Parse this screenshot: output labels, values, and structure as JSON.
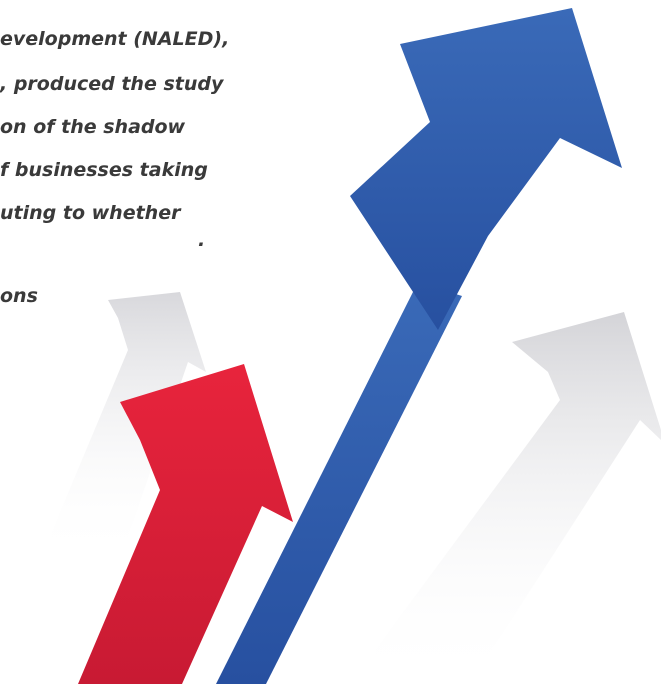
{
  "text_lines": [
    "evelopment (NALED),",
    ", produced the study",
    "on of the shadow",
    "f businesses taking",
    "uting to whether",
    ".",
    "ons"
  ]
}
